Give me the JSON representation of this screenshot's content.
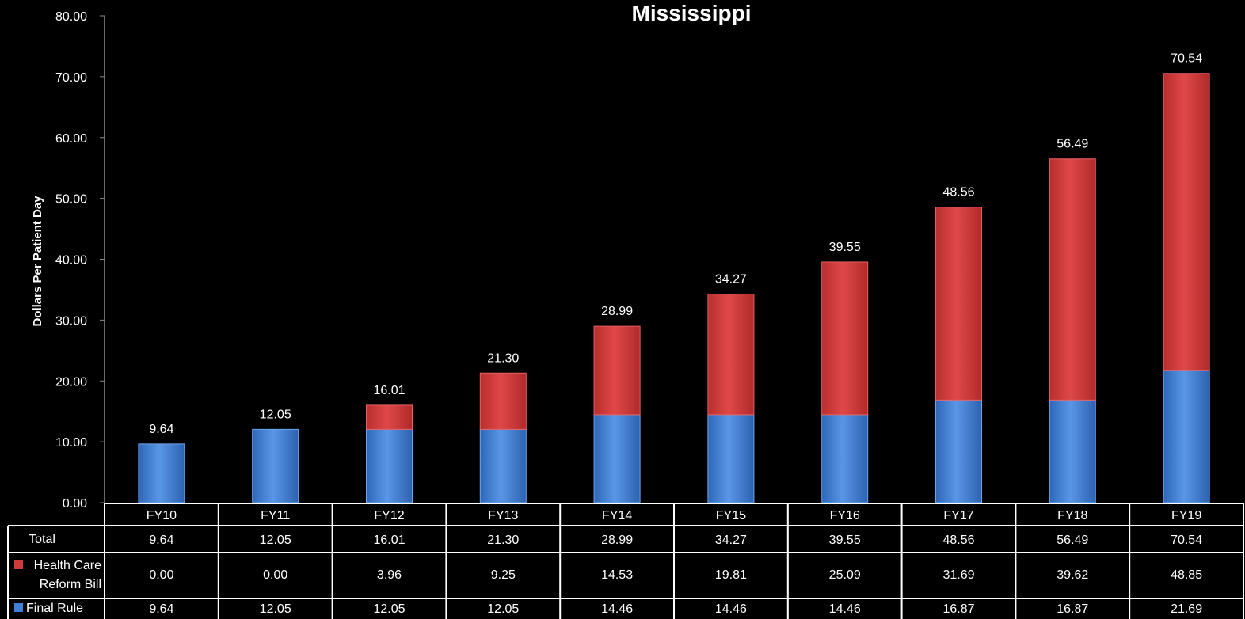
{
  "chart_data": {
    "type": "bar",
    "stacked": true,
    "title": "Mississippi",
    "ylabel": "Dollars Per Patient Day",
    "xlabel": "",
    "ylim": [
      0,
      80
    ],
    "yticks": [
      "0.00",
      "10.00",
      "20.00",
      "30.00",
      "40.00",
      "50.00",
      "60.00",
      "70.00",
      "80.00"
    ],
    "categories": [
      "FY10",
      "FY11",
      "FY12",
      "FY13",
      "FY14",
      "FY15",
      "FY16",
      "FY17",
      "FY18",
      "FY19"
    ],
    "series": [
      {
        "name": "Final Rule",
        "color": "#3f7fd6",
        "values": [
          9.64,
          12.05,
          12.05,
          12.05,
          14.46,
          14.46,
          14.46,
          16.87,
          16.87,
          21.69
        ],
        "labels": [
          "9.64",
          "12.05",
          "12.05",
          "12.05",
          "14.46",
          "14.46",
          "14.46",
          "16.87",
          "16.87",
          "21.69"
        ]
      },
      {
        "name": "Health Care Reform Bill",
        "color": "#cf3a3a",
        "values": [
          0.0,
          0.0,
          3.96,
          9.25,
          14.53,
          19.81,
          25.09,
          31.69,
          39.62,
          48.85
        ],
        "labels": [
          "0.00",
          "0.00",
          "3.96",
          "9.25",
          "14.53",
          "19.81",
          "25.09",
          "31.69",
          "39.62",
          "48.85"
        ]
      }
    ],
    "totals": {
      "name": "Total",
      "values": [
        9.64,
        12.05,
        16.01,
        21.3,
        28.99,
        34.27,
        39.55,
        48.56,
        56.49,
        70.54
      ],
      "labels": [
        "9.64",
        "12.05",
        "16.01",
        "21.30",
        "28.99",
        "34.27",
        "39.55",
        "48.56",
        "56.49",
        "70.54"
      ]
    },
    "data_table": {
      "row_headers": [
        [
          "Total"
        ],
        [
          "Health Care",
          "Reform Bill"
        ],
        [
          "Final Rule"
        ]
      ]
    },
    "grid": false,
    "legend": "data-table"
  }
}
